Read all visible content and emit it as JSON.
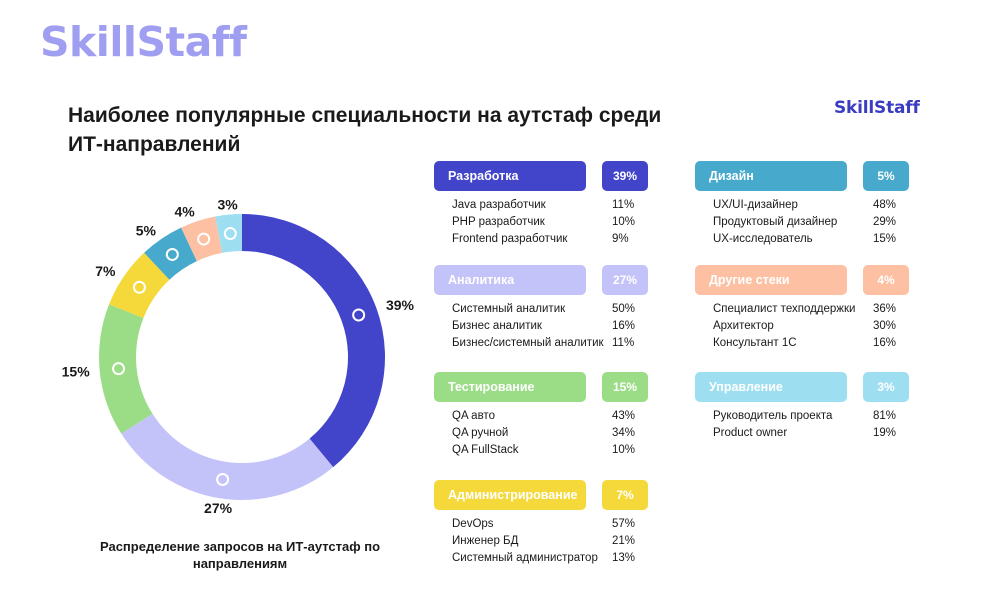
{
  "brand": {
    "logo_large": "SkillStaff",
    "logo_small": "SkillStaff"
  },
  "title": "Наиболее популярные специальности на аутстаф среди ИТ-направлений",
  "caption": "Распределение запросов на ИТ-аутстаф по направлениям",
  "colors": {
    "dev": "#4244c9",
    "analytics": "#c4c3f9",
    "testing": "#9bdd87",
    "admin": "#f5d83a",
    "design": "#47a9cc",
    "other": "#fdc0a3",
    "management": "#9ddff1"
  },
  "chart_data": {
    "type": "pie",
    "donut": true,
    "categories": [
      "Разработка",
      "Аналитика",
      "Тестирование",
      "Администрирование",
      "Дизайн",
      "Другие стеки",
      "Управление"
    ],
    "values": [
      39,
      27,
      15,
      7,
      5,
      4,
      3
    ],
    "labels": [
      "39%",
      "27%",
      "15%",
      "7%",
      "5%",
      "4%",
      "3%"
    ]
  },
  "groups": [
    {
      "key": "dev",
      "name": "Разработка",
      "pct": "39%",
      "rows": [
        {
          "name": "Java разработчик",
          "pct": "11%"
        },
        {
          "name": "PHP разработчик",
          "pct": "10%"
        },
        {
          "name": "Frontend разработчик",
          "pct": "9%"
        }
      ]
    },
    {
      "key": "analytics",
      "name": "Аналитика",
      "pct": "27%",
      "rows": [
        {
          "name": "Системный аналитик",
          "pct": "50%"
        },
        {
          "name": "Бизнес аналитик",
          "pct": "16%"
        },
        {
          "name": "Бизнес/системный аналитик",
          "pct": "11%"
        }
      ]
    },
    {
      "key": "testing",
      "name": "Тестирование",
      "pct": "15%",
      "rows": [
        {
          "name": "QA авто",
          "pct": "43%"
        },
        {
          "name": "QA ручной",
          "pct": "34%"
        },
        {
          "name": "QA FullStack",
          "pct": "10%"
        }
      ]
    },
    {
      "key": "admin",
      "name": "Администрирование",
      "pct": "7%",
      "rows": [
        {
          "name": "DevOps",
          "pct": "57%"
        },
        {
          "name": "Инженер БД",
          "pct": "21%"
        },
        {
          "name": "Системный администратор",
          "pct": "13%"
        }
      ]
    },
    {
      "key": "design",
      "name": "Дизайн",
      "pct": "5%",
      "rows": [
        {
          "name": "UX/UI-дизайнер",
          "pct": "48%"
        },
        {
          "name": "Продуктовый дизайнер",
          "pct": "29%"
        },
        {
          "name": "UX-исследователь",
          "pct": "15%"
        }
      ]
    },
    {
      "key": "other",
      "name": "Другие стеки",
      "pct": "4%",
      "rows": [
        {
          "name": "Специалист техподдержки",
          "pct": "36%"
        },
        {
          "name": "Архитектор",
          "pct": "30%"
        },
        {
          "name": "Консультант 1С",
          "pct": "16%"
        }
      ]
    },
    {
      "key": "management",
      "name": "Управление",
      "pct": "3%",
      "rows": [
        {
          "name": "Руководитель проекта",
          "pct": "81%"
        },
        {
          "name": "Product owner",
          "pct": "19%"
        }
      ]
    }
  ]
}
